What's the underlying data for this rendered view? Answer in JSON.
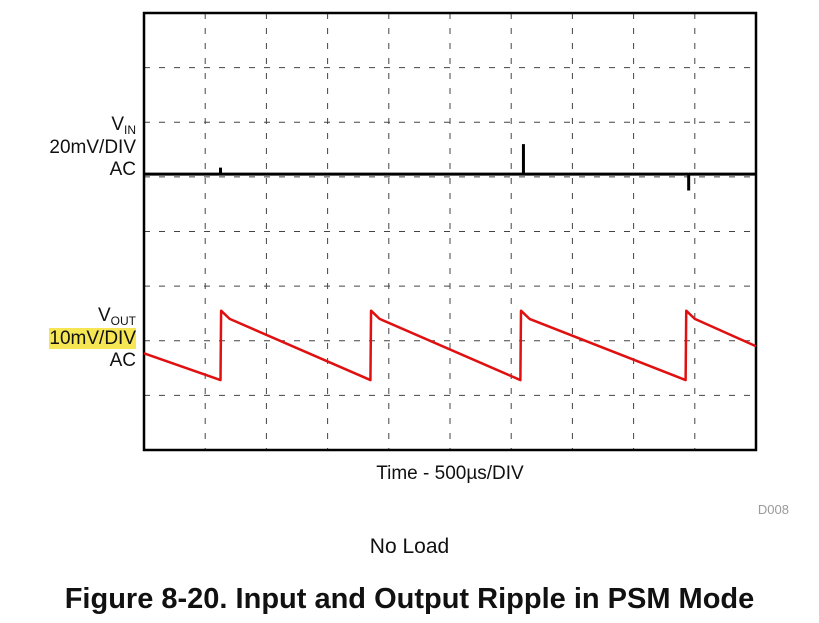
{
  "chart_data": {
    "type": "line",
    "title": "",
    "xlabel": "Time - 500µs/DIV",
    "x_divisions": 10,
    "y_divisions": 8,
    "grid": true,
    "channels": [
      {
        "name_main": "V",
        "name_sub": "IN",
        "scale": "20mV/DIV",
        "coupling": "AC",
        "color": "#000000",
        "baseline_div": 5.05,
        "spike_times_div": [
          1.25,
          6.2,
          8.9
        ],
        "spike_heights_div": [
          0.12,
          0.55,
          -0.3
        ]
      },
      {
        "name_main": "V",
        "name_sub": "OUT",
        "scale": "10mV/DIV",
        "coupling": "AC",
        "color": "#e01010",
        "points": [
          [
            0,
            1.77
          ],
          [
            1.25,
            1.28
          ],
          [
            1.26,
            2.55
          ],
          [
            1.4,
            2.4
          ],
          [
            3.7,
            1.28
          ],
          [
            3.71,
            2.55
          ],
          [
            3.85,
            2.4
          ],
          [
            6.15,
            1.28
          ],
          [
            6.16,
            2.55
          ],
          [
            6.3,
            2.4
          ],
          [
            8.85,
            1.28
          ],
          [
            8.86,
            2.55
          ],
          [
            9.0,
            2.4
          ],
          [
            10.0,
            1.9
          ]
        ]
      }
    ]
  },
  "figure_code": "D008",
  "caption": "No Load",
  "figure_title": "Figure 8-20. Input and Output Ripple in PSM Mode"
}
